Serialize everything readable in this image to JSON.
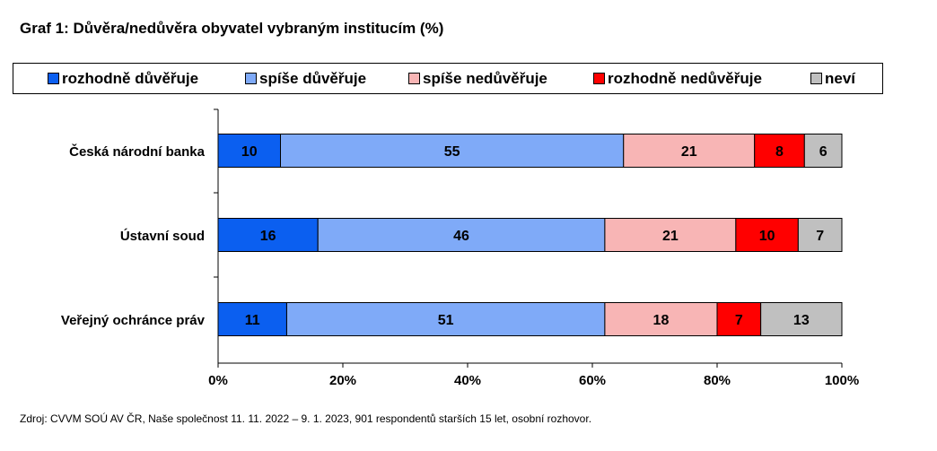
{
  "chart_data": {
    "type": "bar",
    "stacked": true,
    "orientation": "horizontal",
    "title": "Graf 1: Důvěra/nedůvěra obyvatel vybraným institucím (%)",
    "categories": [
      "Česká národní banka",
      "Ústavní soud",
      "Veřejný ochránce práv"
    ],
    "series": [
      {
        "name": "rozhodně důvěřuje",
        "color": "#0b5ff0",
        "values": [
          10,
          16,
          11
        ]
      },
      {
        "name": "spíše důvěřuje",
        "color": "#7faaf8",
        "values": [
          55,
          46,
          51
        ]
      },
      {
        "name": "spíše nedůvěřuje",
        "color": "#f8b5b5",
        "values": [
          21,
          21,
          18
        ]
      },
      {
        "name": "rozhodně nedůvěřuje",
        "color": "#ff0000",
        "values": [
          8,
          10,
          7
        ]
      },
      {
        "name": "neví",
        "color": "#c0c0c0",
        "values": [
          6,
          7,
          13
        ]
      }
    ],
    "xlim": [
      0,
      100
    ],
    "xticks": [
      "0%",
      "20%",
      "40%",
      "60%",
      "80%",
      "100%"
    ],
    "legend_position": "top",
    "grid": false
  },
  "source": "Zdroj: CVVM SOÚ AV ČR, Naše společnost 11. 11. 2022 – 9. 1. 2023, 901 respondentů starších 15 let, osobní rozhovor."
}
